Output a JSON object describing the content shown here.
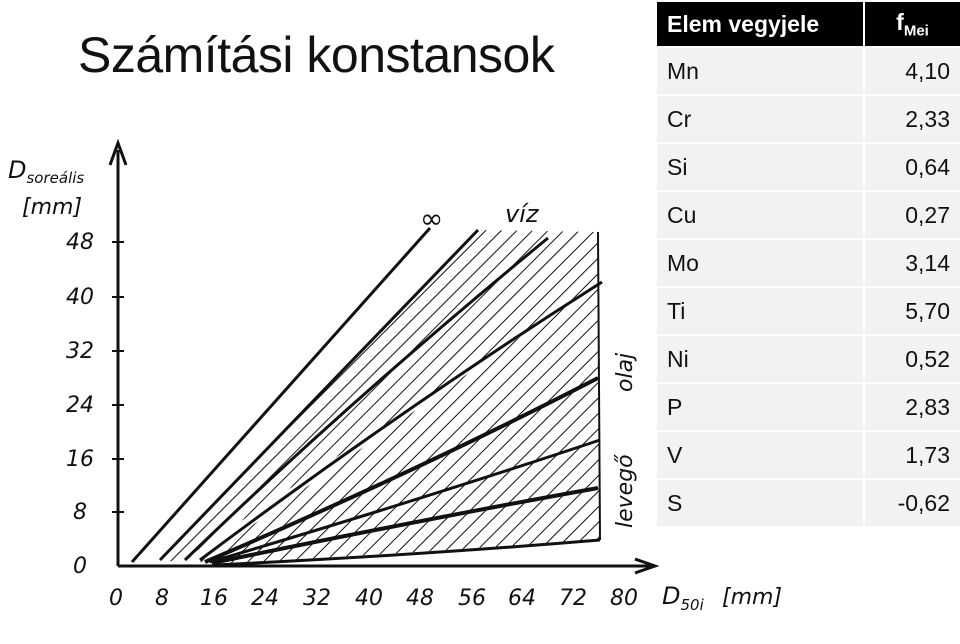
{
  "title": "Számítási konstansok",
  "table": {
    "header_symbol": "Elem vegyjele",
    "header_value_main": "f",
    "header_value_sub": "Mei",
    "rows": [
      {
        "symbol": "Mn",
        "value": "4,10"
      },
      {
        "symbol": "Cr",
        "value": "2,33"
      },
      {
        "symbol": "Si",
        "value": "0,64"
      },
      {
        "symbol": "Cu",
        "value": "0,27"
      },
      {
        "symbol": "Mo",
        "value": "3,14"
      },
      {
        "symbol": "Ti",
        "value": "5,70"
      },
      {
        "symbol": "Ni",
        "value": "0,52"
      },
      {
        "symbol": "P",
        "value": "2,83"
      },
      {
        "symbol": "V",
        "value": "1,73"
      },
      {
        "symbol": "S",
        "value": "-0,62"
      }
    ]
  },
  "diagram": {
    "y_axis_label_main": "D",
    "y_axis_label_sub": "soreális",
    "y_axis_unit": "[mm]",
    "x_axis_label_main": "D",
    "x_axis_label_sub": "50i",
    "x_axis_unit": "[mm]",
    "y_ticks": [
      "0",
      "8",
      "16",
      "24",
      "32",
      "40",
      "48"
    ],
    "x_ticks": [
      "0",
      "8",
      "16",
      "24",
      "32",
      "40",
      "48",
      "56",
      "64",
      "72",
      "80"
    ],
    "curve_labels": {
      "infinity": "∞",
      "water": "víz",
      "oil": "olaj",
      "air": "levegő"
    }
  }
}
